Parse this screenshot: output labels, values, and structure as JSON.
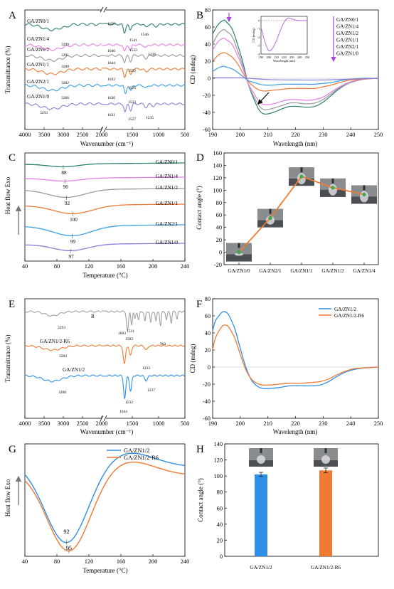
{
  "colors": {
    "gzn01": "#2a7f73",
    "gzn14": "#e87de8",
    "gzn12": "#9a9a9a",
    "gzn11": "#ef7a33",
    "gzn21": "#3a9ee0",
    "gzn10": "#8a7fd8",
    "blue": "#2f8ee6",
    "orange": "#ef7a33",
    "gray": "#a0a0a0",
    "arrow": "#a24bd8",
    "purple": "#b46be3"
  },
  "chart_data": [
    {
      "panel": "A",
      "type": "line",
      "xlabel": "Wavenumber (cm⁻¹)",
      "ylabel": "Transmittance (%)",
      "xlim": [
        4000,
        500
      ],
      "xticks": [
        "4000",
        "3500",
        "3000",
        "2500",
        "2000",
        "1500",
        "1000",
        "500"
      ],
      "axis_break": "//",
      "series": [
        {
          "name": "GA/ZN0/1",
          "labels": [
            "1658",
            "1541",
            "1546"
          ]
        },
        {
          "name": "GA/ZN1/4",
          "labels": [
            "3299",
            "1533"
          ]
        },
        {
          "name": "GA/ZN1/2",
          "labels": [
            "3291",
            "1646",
            "1238"
          ]
        },
        {
          "name": "GA/ZN1/1",
          "labels": [
            "3288",
            "1644",
            "1532"
          ]
        },
        {
          "name": "GA/ZN2/1",
          "labels": [
            "3282",
            "1632",
            "1526"
          ]
        },
        {
          "name": "GA/ZN1/0",
          "labels": [
            "3286",
            "1636",
            "1533",
            "3293",
            "1631",
            "1527",
            "1235"
          ]
        }
      ]
    },
    {
      "panel": "B",
      "type": "line",
      "xlabel": "Wavelength (nm)",
      "ylabel": "CD (mdeg)",
      "xlim": [
        190,
        250
      ],
      "ylim": [
        -60,
        80
      ],
      "xticks": [
        "190",
        "200",
        "210",
        "220",
        "230",
        "240",
        "250"
      ],
      "yticks": [
        "-60",
        "-40",
        "-20",
        "0",
        "20",
        "40",
        "60",
        "80"
      ],
      "legend": [
        "GA/ZN0/1",
        "GA/ZN1/4",
        "GA/ZN1/2",
        "GA/ZN1/1",
        "GA/ZN2/1",
        "GA/ZN1/0"
      ],
      "series": [
        {
          "name": "GA/ZN0/1",
          "x": [
            190,
            192,
            194,
            195,
            197,
            199,
            201,
            203,
            205,
            207,
            209,
            212,
            215,
            218,
            221,
            224,
            227,
            230,
            233,
            236,
            240,
            245,
            250
          ],
          "y": [
            52,
            63,
            68,
            66,
            58,
            40,
            18,
            -8,
            -25,
            -38,
            -42,
            -40,
            -36,
            -33,
            -33,
            -34,
            -33,
            -28,
            -20,
            -12,
            -5,
            -1,
            0
          ]
        },
        {
          "name": "GA/ZN1/2",
          "x": [
            190,
            192,
            194,
            195,
            197,
            199,
            201,
            203,
            205,
            207,
            209,
            212,
            215,
            218,
            221,
            224,
            227,
            230,
            233,
            236,
            240,
            245,
            250
          ],
          "y": [
            40,
            52,
            57,
            55,
            49,
            33,
            14,
            -8,
            -22,
            -33,
            -37,
            -35,
            -32,
            -29,
            -29,
            -30,
            -29,
            -25,
            -18,
            -11,
            -5,
            -1,
            0
          ]
        },
        {
          "name": "GA/ZN1/4",
          "x": [
            190,
            192,
            194,
            195,
            197,
            199,
            201,
            203,
            205,
            207,
            209,
            212,
            215,
            218,
            221,
            224,
            227,
            230,
            233,
            236,
            240,
            245,
            250
          ],
          "y": [
            33,
            43,
            47,
            45,
            40,
            27,
            11,
            -7,
            -18,
            -28,
            -31,
            -30,
            -27,
            -25,
            -25,
            -26,
            -25,
            -22,
            -16,
            -10,
            -4,
            -1,
            0
          ]
        },
        {
          "name": "GA/ZN1/1",
          "x": [
            190,
            192,
            194,
            195,
            197,
            199,
            201,
            203,
            205,
            207,
            209,
            212,
            215,
            218,
            221,
            224,
            227,
            230,
            233,
            236,
            240,
            245,
            250
          ],
          "y": [
            20,
            27,
            30,
            29,
            25,
            17,
            6,
            -4,
            -10,
            -14,
            -15,
            -14,
            -13,
            -12,
            -12,
            -12,
            -12,
            -10,
            -8,
            -5,
            -2,
            -1,
            0
          ]
        },
        {
          "name": "GA/ZN2/1",
          "x": [
            190,
            192,
            194,
            195,
            197,
            199,
            201,
            203,
            205,
            207,
            209,
            212,
            215,
            218,
            221,
            224,
            227,
            230,
            233,
            236,
            240,
            245,
            250
          ],
          "y": [
            8,
            12,
            14,
            13,
            11,
            7,
            2,
            -3,
            -5,
            -7,
            -8,
            -8,
            -7,
            -7,
            -7,
            -7,
            -7,
            -6,
            -5,
            -3,
            -1,
            0,
            0
          ]
        },
        {
          "name": "GA/ZN1/0",
          "x": [
            190,
            195,
            200,
            205,
            210,
            220,
            230,
            240,
            250
          ],
          "y": [
            0.5,
            0.5,
            0.5,
            -0.5,
            -1.5,
            -2,
            -2,
            -1,
            0
          ]
        }
      ],
      "inset": {
        "xlabel": "Wavelength (nm)",
        "ylabel": "CD (mdeg)",
        "xticks": [
          "190",
          "200",
          "210",
          "220",
          "230",
          "240",
          "250"
        ],
        "yticks": [
          "0",
          "-1",
          "-2",
          "-3",
          "-4"
        ],
        "x": [
          190,
          195,
          200,
          205,
          210,
          215,
          220,
          225,
          230,
          235,
          240,
          245,
          250
        ],
        "y": [
          -0.8,
          -2.5,
          -3.6,
          -3.3,
          -2.4,
          -1.2,
          -0.2,
          0.3,
          0.2,
          0.05,
          0,
          0,
          0
        ]
      }
    },
    {
      "panel": "C",
      "type": "line",
      "xlabel": "Temperature (°C)",
      "ylabel": "Heat flow Exo",
      "xlim": [
        40,
        240
      ],
      "xticks": [
        "40",
        "80",
        "120",
        "160",
        "200",
        "240"
      ],
      "series": [
        {
          "name": "GA/ZN0/1",
          "peak": "88"
        },
        {
          "name": "GA/ZN1/4",
          "peak": "90"
        },
        {
          "name": "GA/ZN1/2",
          "peak": "92"
        },
        {
          "name": "GA/ZN1/1",
          "peak": "100"
        },
        {
          "name": "GA/ZN2/1",
          "peak": "99"
        },
        {
          "name": "GA/ZN1/0",
          "peak": "97"
        }
      ]
    },
    {
      "panel": "D",
      "type": "line",
      "ylabel": "Contact angle (°)",
      "ylim": [
        -20,
        160
      ],
      "yticks": [
        "-20",
        "0",
        "20",
        "40",
        "60",
        "80",
        "100",
        "120",
        "140",
        "160"
      ],
      "categories": [
        "GA/ZN1/0",
        "GA/ZN2/1",
        "GA/ZN1/1",
        "GA/ZN1/2",
        "GA/ZN1/4"
      ],
      "values": [
        0,
        55,
        122,
        104,
        93
      ]
    },
    {
      "panel": "E",
      "type": "line",
      "xlabel": "Wavenumber (cm⁻¹)",
      "ylabel": "Transmittance (%)",
      "xlim": [
        4000,
        500
      ],
      "xticks": [
        "4000",
        "3500",
        "3000",
        "2500",
        "2000",
        "1500",
        "1000",
        "500"
      ],
      "series": [
        {
          "name": "R",
          "labels": [
            "3293",
            "1603",
            "1511",
            "1583",
            "963"
          ]
        },
        {
          "name": "GA/ZN1/2-R6",
          "labels": [
            "3284",
            "1233"
          ]
        },
        {
          "name": "GA/ZN1/2",
          "labels": [
            "3288",
            "1532",
            "1237",
            "1644"
          ]
        }
      ]
    },
    {
      "panel": "F",
      "type": "line",
      "xlabel": "Wavelength (nm)",
      "ylabel": "CD (mdeg)",
      "xlim": [
        190,
        250
      ],
      "ylim": [
        -60,
        80
      ],
      "xticks": [
        "190",
        "200",
        "210",
        "220",
        "230",
        "240",
        "250"
      ],
      "yticks": [
        "-60",
        "-40",
        "-20",
        "0",
        "20",
        "40",
        "60",
        "80"
      ],
      "legend": [
        "GA/ZN1/2",
        "GA/ZN1/2-R6"
      ],
      "series": [
        {
          "name": "GA/ZN1/2",
          "x": [
            190,
            191,
            193,
            194,
            195,
            196,
            198,
            200,
            202,
            204,
            206,
            208,
            211,
            214,
            218,
            222,
            226,
            229,
            232,
            235,
            238,
            241,
            245,
            250
          ],
          "y": [
            42,
            54,
            63,
            65,
            64,
            60,
            45,
            22,
            0,
            -15,
            -22,
            -25,
            -25,
            -24,
            -22,
            -22,
            -22,
            -21,
            -17,
            -11,
            -6,
            -3,
            -1,
            0
          ]
        },
        {
          "name": "GA/ZN1/2-R6",
          "x": [
            190,
            191,
            193,
            194,
            195,
            196,
            198,
            200,
            202,
            204,
            206,
            208,
            211,
            214,
            218,
            222,
            226,
            229,
            232,
            235,
            238,
            241,
            245,
            250
          ],
          "y": [
            20,
            34,
            46,
            49,
            49,
            46,
            34,
            15,
            -3,
            -14,
            -19,
            -21,
            -21,
            -20,
            -19,
            -19,
            -18,
            -17,
            -14,
            -9,
            -5,
            -2,
            -1,
            0
          ]
        }
      ]
    },
    {
      "panel": "G",
      "type": "line",
      "xlabel": "Temperature (°C)",
      "ylabel": "Heat flow Exo",
      "xlim": [
        40,
        240
      ],
      "xticks": [
        "40",
        "80",
        "120",
        "160",
        "200",
        "240"
      ],
      "legend": [
        "GA/ZN1/2",
        "GA/ZN1/2-R6"
      ],
      "series": [
        {
          "name": "GA/ZN1/2",
          "peak": "92"
        },
        {
          "name": "GA/ZN1/2-R6",
          "peak": "95"
        }
      ]
    },
    {
      "panel": "H",
      "type": "bar",
      "ylabel": "Contact angle (°)",
      "ylim": [
        0,
        140
      ],
      "yticks": [
        "0",
        "20",
        "40",
        "60",
        "80",
        "100",
        "120",
        "140"
      ],
      "categories": [
        "GA/ZN1/2",
        "GA/ZN1/2-R6"
      ],
      "values": [
        102,
        107
      ],
      "errors": [
        2.5,
        3
      ]
    }
  ]
}
